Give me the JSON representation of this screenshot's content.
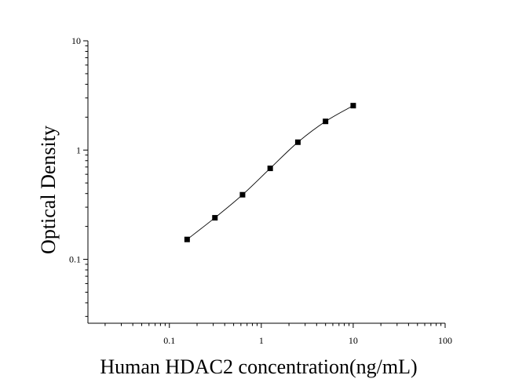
{
  "chart_data": {
    "type": "scatter",
    "title": "",
    "xlabel": "Human HDAC2 concentration(ng/mL)",
    "ylabel": "Optical Density",
    "xscale": "log",
    "yscale": "log",
    "xlim": [
      0.013,
      100
    ],
    "ylim": [
      0.026,
      10
    ],
    "x_ticks": [
      0.1,
      1,
      10,
      100
    ],
    "x_tick_labels": [
      "0.1",
      "1",
      "10",
      "100"
    ],
    "y_ticks": [
      0.1,
      1,
      10
    ],
    "y_tick_labels": [
      "0.1",
      "1",
      "10"
    ],
    "grid": false,
    "legend": "none",
    "marker": "square",
    "marker_color": "#000000",
    "line_color": "#000000",
    "series": [
      {
        "x": [
          0.156,
          0.313,
          0.625,
          1.25,
          2.5,
          5,
          10
        ],
        "y": [
          0.152,
          0.24,
          0.39,
          0.68,
          1.18,
          1.83,
          2.55
        ]
      }
    ]
  }
}
